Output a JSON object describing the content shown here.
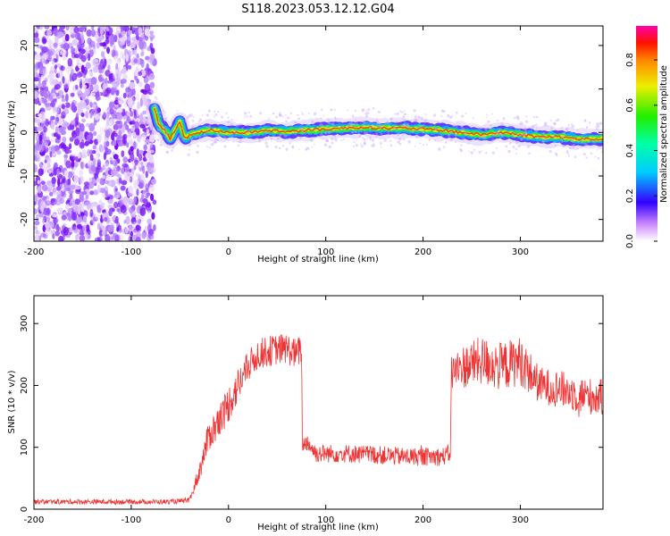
{
  "figure_title": "S118.2023.053.12.12.G04",
  "chart_data": [
    {
      "type": "heatmap",
      "panel": "spectrogram",
      "xlabel": "Height of straight line (km)",
      "ylabel": "Frequency (Hz)",
      "xlim": [
        -200,
        385
      ],
      "ylim": [
        -25,
        24.5
      ],
      "xticks": [
        "-200",
        "-100",
        "0",
        "100",
        "200",
        "300"
      ],
      "yticks": [
        "-20",
        "-10",
        "0",
        "10",
        "20"
      ],
      "noise_region": {
        "x_from": -200,
        "x_to": -76,
        "description": "broadband noise"
      },
      "ridge": {
        "x": [
          -76,
          -72,
          -68,
          -64,
          -60,
          -55,
          -50,
          -45,
          -40,
          -30,
          -20,
          -10,
          0,
          20,
          40,
          60,
          80,
          100,
          120,
          140,
          160,
          180,
          200,
          220,
          240,
          260,
          280,
          300,
          320,
          340,
          360,
          385
        ],
        "frequency": [
          5.5,
          2.0,
          1.0,
          0.0,
          -1.5,
          0.5,
          2.5,
          -1.5,
          -0.5,
          0.0,
          0.5,
          0.3,
          0.0,
          0.0,
          0.5,
          0.2,
          0.5,
          0.8,
          1.0,
          1.2,
          1.0,
          1.0,
          0.8,
          0.5,
          0.0,
          -0.5,
          0.0,
          -0.5,
          -1.0,
          -1.0,
          -1.5,
          -1.5
        ]
      },
      "colorbar": {
        "label": "Normalized spectral amplitude",
        "range": [
          0.0,
          0.95
        ],
        "ticks": [
          "0.0",
          "0.2",
          "0.4",
          "0.6",
          "0.8"
        ]
      }
    },
    {
      "type": "line",
      "panel": "snr",
      "xlabel": "Height of straight line (km)",
      "ylabel": "SNR (10 * v/v)",
      "xlim": [
        -200,
        385
      ],
      "ylim": [
        0,
        345
      ],
      "xticks": [
        "-200",
        "-100",
        "0",
        "100",
        "200",
        "300"
      ],
      "yticks": [
        "0",
        "100",
        "200",
        "300"
      ],
      "color": "#ee3333",
      "series": [
        {
          "x": [
            -200,
            -150,
            -100,
            -60,
            -40,
            -30,
            -20,
            -10,
            0,
            10,
            20,
            30,
            40,
            50,
            60,
            70,
            75,
            76,
            80,
            90,
            100,
            120,
            150,
            180,
            200,
            220,
            228,
            229,
            240,
            260,
            280,
            300,
            320,
            340,
            360,
            385
          ],
          "values": [
            12,
            12,
            12,
            12,
            14,
            60,
            120,
            140,
            170,
            200,
            230,
            250,
            255,
            258,
            260,
            250,
            260,
            100,
            110,
            90,
            90,
            90,
            88,
            85,
            85,
            85,
            90,
            220,
            230,
            240,
            230,
            240,
            200,
            195,
            185,
            180
          ],
          "spread": [
            4,
            4,
            4,
            4,
            4,
            15,
            25,
            30,
            30,
            30,
            25,
            25,
            25,
            25,
            25,
            25,
            25,
            15,
            15,
            15,
            15,
            15,
            15,
            15,
            15,
            15,
            15,
            30,
            35,
            40,
            40,
            40,
            30,
            30,
            30,
            30
          ]
        }
      ]
    }
  ]
}
